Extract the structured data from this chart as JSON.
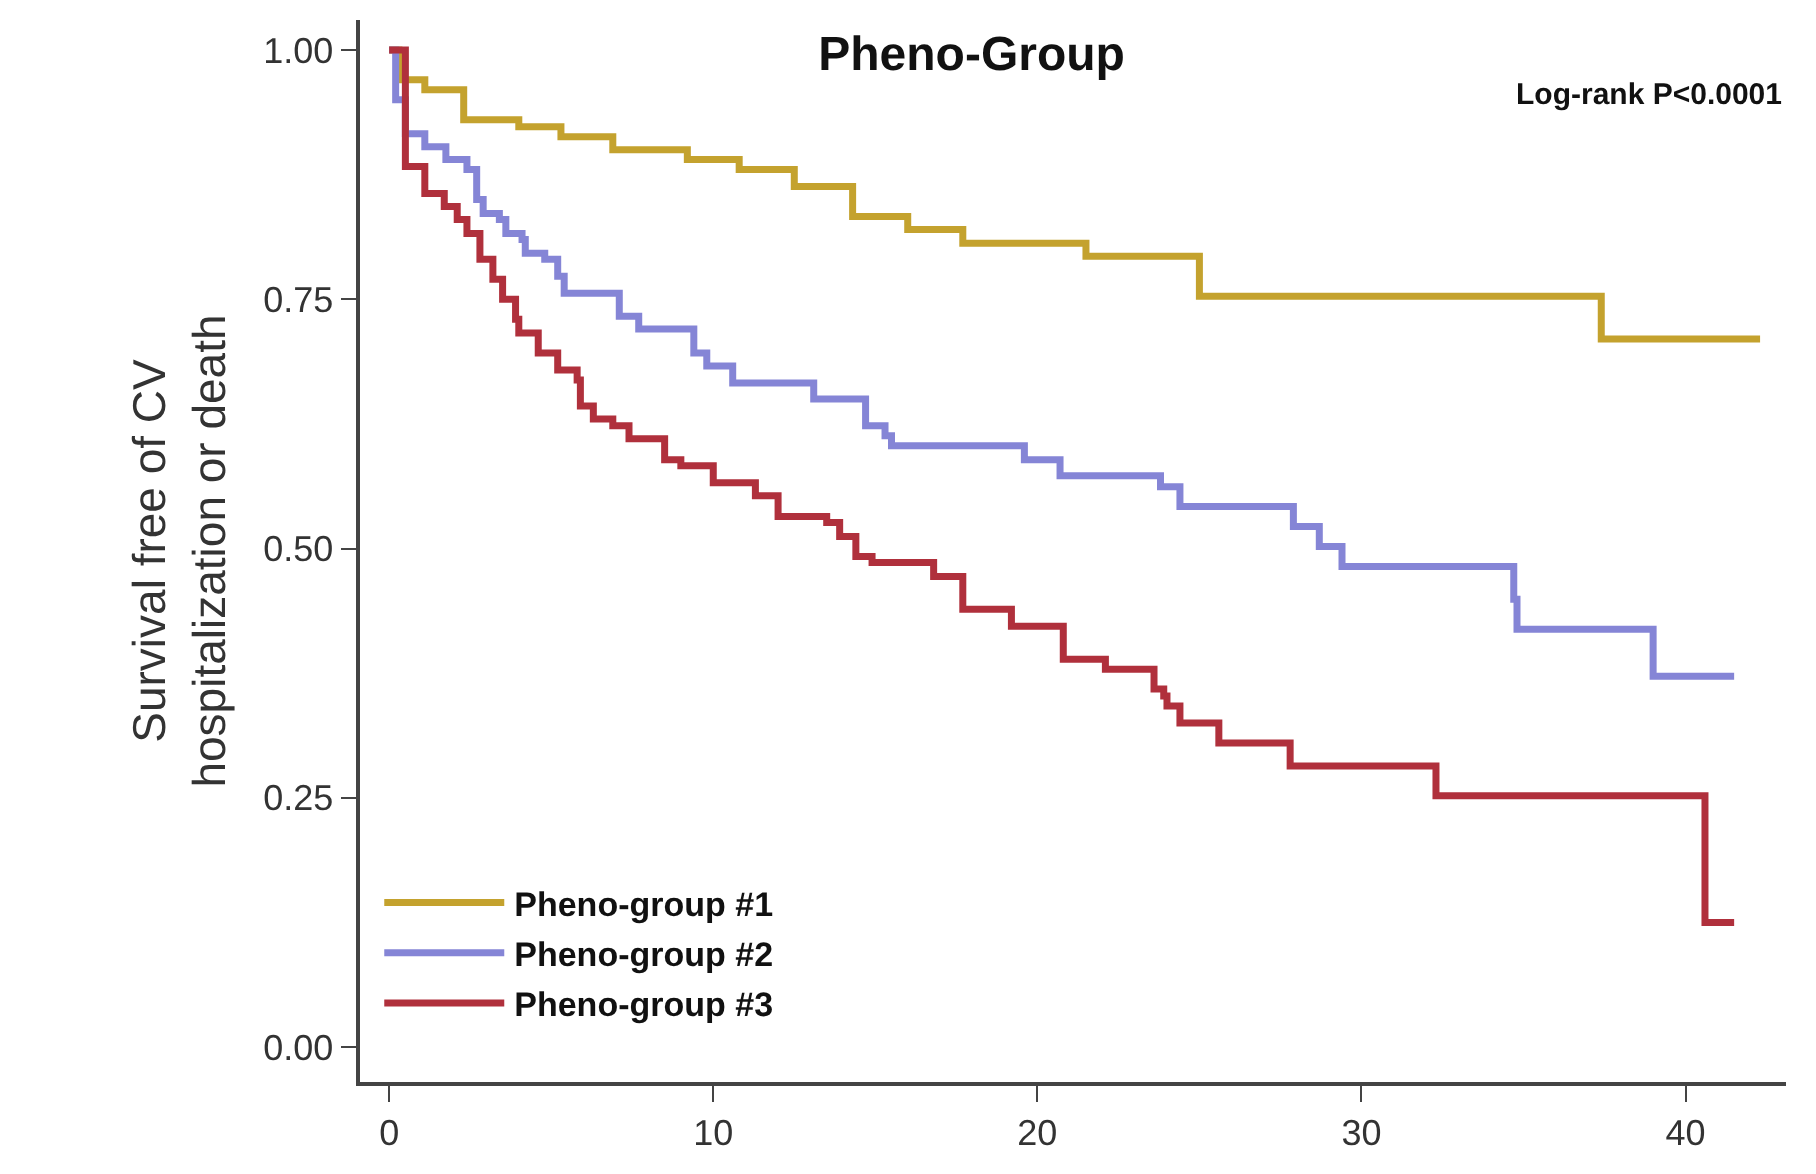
{
  "chart_data": {
    "type": "step",
    "title": "Pheno-Group",
    "ylabel": "Survival free of CV\nhospitalization or death",
    "annotations": [
      "Log-rank P<0.0001"
    ],
    "xlim": [
      -0.9,
      43.1
    ],
    "xticks": [
      0,
      10,
      20,
      30,
      40
    ],
    "ylim": [
      -0.035,
      1.03
    ],
    "yticks": [
      {
        "value": 0,
        "label": "0.00"
      },
      {
        "value": 0.25,
        "label": "0.25"
      },
      {
        "value": 0.5,
        "label": "0.50"
      },
      {
        "value": 0.75,
        "label": "0.75"
      },
      {
        "value": 1,
        "label": "1.00"
      }
    ],
    "grid": false,
    "legend": "bottom left",
    "marker": "none",
    "line_style": "solid",
    "series": [
      {
        "name": "Pheno-group #1",
        "color": "#c4a22e",
        "x": [
          0,
          0.3,
          1.1,
          2.3,
          4.0,
          5.3,
          6.9,
          9.2,
          10.8,
          12.5,
          14.3,
          16.0,
          17.7,
          21.5,
          25.0,
          37.4,
          42.3
        ],
        "values": [
          1,
          0.97,
          0.96,
          0.93,
          0.923,
          0.913,
          0.9,
          0.89,
          0.88,
          0.863,
          0.833,
          0.82,
          0.806,
          0.793,
          0.753,
          0.71,
          0.71
        ]
      },
      {
        "name": "Pheno-group #2",
        "color": "#8585d6",
        "x": [
          0,
          0.2,
          0.5,
          1.1,
          1.75,
          2.4,
          2.7,
          2.9,
          3.4,
          3.6,
          4.1,
          4.2,
          4.8,
          5.2,
          5.4,
          7.1,
          7.7,
          9.4,
          9.8,
          10.6,
          13.1,
          14.7,
          15.3,
          15.5,
          19.6,
          20.7,
          23.8,
          24.4,
          27.9,
          28.7,
          29.4,
          34.7,
          34.8,
          39.0,
          41.5
        ],
        "values": [
          1,
          0.95,
          0.916,
          0.903,
          0.89,
          0.88,
          0.85,
          0.836,
          0.83,
          0.816,
          0.81,
          0.796,
          0.79,
          0.773,
          0.756,
          0.733,
          0.72,
          0.696,
          0.683,
          0.666,
          0.65,
          0.623,
          0.613,
          0.603,
          0.589,
          0.573,
          0.562,
          0.542,
          0.522,
          0.502,
          0.482,
          0.449,
          0.419,
          0.372,
          0.372
        ]
      },
      {
        "name": "Pheno-group #3",
        "color": "#b0303c",
        "x": [
          0,
          0.5,
          1.1,
          1.7,
          2.1,
          2.4,
          2.8,
          3.2,
          3.5,
          3.9,
          4.0,
          4.6,
          5.2,
          5.8,
          5.9,
          6.3,
          6.9,
          7.4,
          8.5,
          9.0,
          10.0,
          11.3,
          12.0,
          13.5,
          13.9,
          14.4,
          14.9,
          16.8,
          17.7,
          19.2,
          20.8,
          22.1,
          23.6,
          23.9,
          24.0,
          24.4,
          25.6,
          27.8,
          32.3,
          40.6,
          41.5
        ],
        "values": [
          1,
          0.883,
          0.856,
          0.843,
          0.83,
          0.816,
          0.79,
          0.77,
          0.75,
          0.73,
          0.716,
          0.696,
          0.679,
          0.669,
          0.643,
          0.63,
          0.623,
          0.61,
          0.589,
          0.583,
          0.566,
          0.553,
          0.532,
          0.526,
          0.512,
          0.492,
          0.486,
          0.472,
          0.439,
          0.422,
          0.389,
          0.379,
          0.359,
          0.352,
          0.342,
          0.325,
          0.305,
          0.282,
          0.252,
          0.125,
          0.125
        ]
      }
    ]
  }
}
